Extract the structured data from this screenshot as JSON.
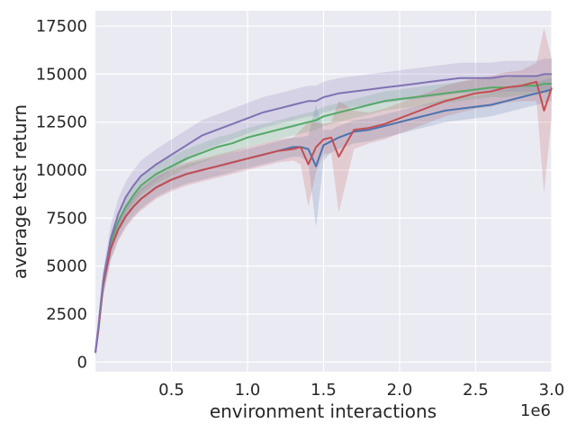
{
  "chart_data": {
    "type": "line",
    "title": "",
    "xlabel": "environment interactions",
    "ylabel": "average test return",
    "x_offset_label": "1e6",
    "xlim": [
      0,
      3000000
    ],
    "ylim": [
      -500,
      18300
    ],
    "x_ticks": [
      500000,
      1000000,
      1500000,
      2000000,
      2500000,
      3000000
    ],
    "x_tick_labels": [
      "0.5",
      "1.0",
      "1.5",
      "2.0",
      "2.5",
      "3.0"
    ],
    "y_ticks": [
      0,
      2500,
      5000,
      7500,
      10000,
      12500,
      15000,
      17500
    ],
    "y_tick_labels": [
      "0",
      "2500",
      "5000",
      "7500",
      "10000",
      "12500",
      "15000",
      "17500"
    ],
    "grid": true,
    "legend": "none",
    "colors": {
      "plot_bg": "#eaeaf2",
      "grid": "#ffffff"
    },
    "x": [
      0,
      20000,
      50000,
      100000,
      150000,
      200000,
      250000,
      300000,
      400000,
      500000,
      600000,
      700000,
      800000,
      900000,
      1000000,
      1100000,
      1200000,
      1300000,
      1350000,
      1400000,
      1450000,
      1500000,
      1550000,
      1600000,
      1700000,
      1800000,
      1900000,
      2000000,
      2100000,
      2200000,
      2300000,
      2400000,
      2500000,
      2600000,
      2700000,
      2800000,
      2900000,
      2950000,
      3000000
    ],
    "series": [
      {
        "color": "#4c72b0",
        "values": [
          500,
          1700,
          4000,
          5900,
          6900,
          7600,
          8100,
          8500,
          9100,
          9500,
          9800,
          10000,
          10200,
          10400,
          10600,
          10800,
          11000,
          11200,
          11200,
          11100,
          10200,
          11300,
          11500,
          11700,
          12000,
          12100,
          12300,
          12500,
          12700,
          12900,
          13100,
          13200,
          13300,
          13400,
          13600,
          13800,
          14000,
          14100,
          14200
        ],
        "band": [
          200,
          300,
          600,
          600,
          500,
          500,
          500,
          500,
          500,
          500,
          500,
          500,
          500,
          500,
          500,
          500,
          500,
          500,
          500,
          700,
          3200,
          800,
          600,
          600,
          600,
          600,
          600,
          600,
          600,
          600,
          600,
          600,
          600,
          600,
          600,
          600,
          600,
          600,
          600
        ]
      },
      {
        "color": "#dd8452",
        "values": [
          500,
          1700,
          4000,
          5900,
          6900,
          7600,
          8100,
          8500,
          9100,
          9500,
          9800,
          10000,
          10200,
          10400,
          10600,
          10800,
          11000,
          11200,
          11200,
          11100,
          10200,
          11300,
          11500,
          11700,
          12000,
          12100,
          12300,
          12500,
          12700,
          12900,
          13100,
          13200,
          13300,
          13400,
          13600,
          13800,
          14000,
          14100,
          14200
        ],
        "band": [
          0,
          0,
          0,
          0,
          0,
          0,
          0,
          0,
          0,
          0,
          0,
          0,
          0,
          0,
          0,
          0,
          0,
          0,
          0,
          0,
          0,
          0,
          0,
          0,
          0,
          0,
          0,
          0,
          0,
          0,
          0,
          0,
          0,
          0,
          0,
          0,
          0,
          0,
          0
        ],
        "hidden": true
      },
      {
        "color": "#55a868",
        "values": [
          500,
          1800,
          4100,
          6200,
          7300,
          8100,
          8700,
          9200,
          9800,
          10200,
          10600,
          10900,
          11200,
          11400,
          11700,
          11900,
          12100,
          12300,
          12400,
          12500,
          12600,
          12800,
          12900,
          13000,
          13200,
          13400,
          13600,
          13700,
          13800,
          13900,
          14000,
          14100,
          14200,
          14300,
          14300,
          14400,
          14400,
          14500,
          14500
        ],
        "band": [
          200,
          300,
          500,
          500,
          500,
          500,
          500,
          500,
          500,
          500,
          500,
          500,
          500,
          500,
          500,
          500,
          500,
          500,
          500,
          500,
          500,
          500,
          500,
          500,
          500,
          500,
          500,
          500,
          500,
          500,
          500,
          500,
          500,
          500,
          500,
          500,
          500,
          500,
          500
        ]
      },
      {
        "color": "#c44e52",
        "values": [
          500,
          1700,
          4000,
          5900,
          6900,
          7600,
          8100,
          8500,
          9100,
          9500,
          9800,
          10000,
          10200,
          10400,
          10600,
          10800,
          11000,
          11100,
          11200,
          10300,
          11200,
          11600,
          11700,
          10700,
          12100,
          12200,
          12400,
          12700,
          13000,
          13300,
          13600,
          13800,
          14000,
          14100,
          14300,
          14400,
          14600,
          13100,
          14300
        ],
        "band": [
          200,
          300,
          600,
          600,
          600,
          600,
          600,
          600,
          600,
          600,
          600,
          600,
          600,
          600,
          600,
          600,
          600,
          600,
          900,
          2200,
          1300,
          800,
          800,
          2900,
          1000,
          800,
          800,
          800,
          800,
          800,
          800,
          800,
          800,
          800,
          800,
          800,
          1000,
          4300,
          1500
        ]
      },
      {
        "color": "#8172b3",
        "values": [
          500,
          1900,
          4200,
          6400,
          7700,
          8600,
          9200,
          9700,
          10300,
          10800,
          11300,
          11800,
          12100,
          12400,
          12700,
          13000,
          13200,
          13400,
          13500,
          13600,
          13600,
          13800,
          13900,
          14000,
          14100,
          14200,
          14300,
          14400,
          14500,
          14600,
          14700,
          14800,
          14800,
          14800,
          14900,
          14900,
          14900,
          15000,
          15000
        ],
        "band": [
          200,
          300,
          500,
          700,
          800,
          800,
          800,
          800,
          800,
          800,
          800,
          800,
          800,
          800,
          800,
          800,
          800,
          800,
          800,
          800,
          800,
          800,
          800,
          800,
          800,
          800,
          800,
          800,
          800,
          800,
          800,
          800,
          800,
          800,
          800,
          800,
          800,
          800,
          800
        ]
      }
    ]
  }
}
